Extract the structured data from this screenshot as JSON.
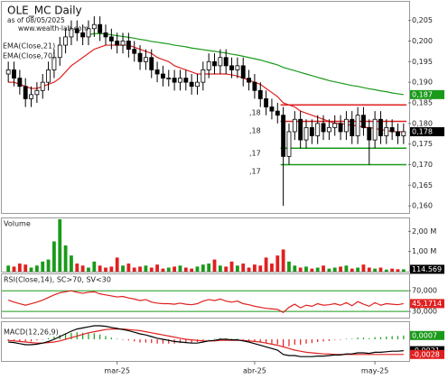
{
  "chart_data": [
    {
      "type": "candlestick",
      "title": "OLE_MC Daily",
      "subtitle": "as of 08/05/2025",
      "source": "www.wealth-lab.com",
      "categories": [
        null,
        null,
        null,
        null,
        null,
        null,
        null,
        null,
        null,
        null,
        null,
        null,
        null,
        null,
        null,
        null,
        null,
        null,
        null,
        "mar-25",
        null,
        null,
        null,
        null,
        null,
        null,
        null,
        null,
        null,
        null,
        null,
        null,
        null,
        null,
        null,
        null,
        null,
        null,
        null,
        null,
        null,
        null,
        null,
        "abr-25",
        null,
        null,
        null,
        null,
        null,
        null,
        null,
        null,
        null,
        null,
        null,
        null,
        null,
        null,
        null,
        null,
        null,
        null,
        null,
        null,
        "may-25",
        null,
        null,
        null,
        null,
        null
      ],
      "open": [
        0.192,
        0.193,
        0.191,
        0.189,
        0.186,
        0.187,
        0.188,
        0.19,
        0.193,
        0.196,
        0.199,
        0.201,
        0.203,
        0.202,
        0.201,
        0.203,
        0.204,
        0.202,
        0.201,
        0.2,
        0.199,
        0.2,
        0.198,
        0.197,
        0.195,
        0.196,
        0.193,
        0.192,
        0.191,
        0.191,
        0.19,
        0.191,
        0.19,
        0.189,
        0.19,
        0.193,
        0.195,
        0.194,
        0.196,
        0.194,
        0.193,
        0.194,
        0.191,
        0.19,
        0.188,
        0.186,
        0.184,
        0.183,
        0.182,
        0.172,
        0.178,
        0.181,
        0.176,
        0.179,
        0.177,
        0.18,
        0.178,
        0.179,
        0.18,
        0.178,
        0.181,
        0.177,
        0.182,
        0.179,
        0.176,
        0.181,
        0.177,
        0.179,
        0.178,
        0.177
      ],
      "high": [
        0.195,
        0.195,
        0.193,
        0.191,
        0.189,
        0.19,
        0.192,
        0.195,
        0.198,
        0.201,
        0.203,
        0.205,
        0.205,
        0.204,
        0.205,
        0.206,
        0.206,
        0.204,
        0.203,
        0.202,
        0.202,
        0.202,
        0.2,
        0.199,
        0.198,
        0.198,
        0.195,
        0.194,
        0.193,
        0.193,
        0.193,
        0.193,
        0.192,
        0.192,
        0.195,
        0.197,
        0.197,
        0.198,
        0.198,
        0.196,
        0.196,
        0.196,
        0.193,
        0.192,
        0.19,
        0.188,
        0.186,
        0.185,
        0.184,
        0.18,
        0.183,
        0.183,
        0.181,
        0.181,
        0.182,
        0.182,
        0.181,
        0.182,
        0.182,
        0.183,
        0.183,
        0.184,
        0.184,
        0.181,
        0.183,
        0.183,
        0.181,
        0.181,
        0.18,
        0.18
      ],
      "low": [
        0.19,
        0.189,
        0.187,
        0.184,
        0.184,
        0.185,
        0.186,
        0.188,
        0.191,
        0.194,
        0.197,
        0.199,
        0.2,
        0.199,
        0.199,
        0.201,
        0.2,
        0.199,
        0.198,
        0.197,
        0.197,
        0.196,
        0.195,
        0.193,
        0.193,
        0.191,
        0.19,
        0.189,
        0.189,
        0.188,
        0.188,
        0.188,
        0.187,
        0.187,
        0.188,
        0.191,
        0.192,
        0.192,
        0.192,
        0.191,
        0.191,
        0.189,
        0.188,
        0.186,
        0.184,
        0.182,
        0.181,
        0.18,
        0.16,
        0.17,
        0.176,
        0.174,
        0.174,
        0.175,
        0.175,
        0.176,
        0.176,
        0.177,
        0.176,
        0.176,
        0.175,
        0.175,
        0.177,
        0.17,
        0.174,
        0.175,
        0.175,
        0.176,
        0.175,
        0.175
      ],
      "close": [
        0.193,
        0.191,
        0.189,
        0.186,
        0.187,
        0.188,
        0.19,
        0.193,
        0.196,
        0.199,
        0.201,
        0.203,
        0.202,
        0.201,
        0.203,
        0.204,
        0.202,
        0.201,
        0.2,
        0.199,
        0.2,
        0.198,
        0.197,
        0.195,
        0.196,
        0.193,
        0.192,
        0.191,
        0.191,
        0.19,
        0.191,
        0.19,
        0.189,
        0.19,
        0.193,
        0.195,
        0.194,
        0.196,
        0.194,
        0.193,
        0.194,
        0.191,
        0.19,
        0.188,
        0.186,
        0.184,
        0.183,
        0.182,
        0.172,
        0.178,
        0.181,
        0.176,
        0.179,
        0.177,
        0.18,
        0.178,
        0.179,
        0.18,
        0.178,
        0.181,
        0.177,
        0.182,
        0.179,
        0.176,
        0.181,
        0.177,
        0.179,
        0.178,
        0.177,
        0.178
      ],
      "up_color": "#ffffff",
      "down_color": "#000000",
      "last_label": {
        "value": 0.178,
        "label": "0,178"
      },
      "series": [
        {
          "name": "EMA(Close,21)",
          "color": "#e02020",
          "values": [
            0.19,
            0.19,
            0.1895,
            0.189,
            0.1885,
            0.1885,
            0.189,
            0.1895,
            0.19,
            0.191,
            0.1925,
            0.194,
            0.195,
            0.196,
            0.197,
            0.198,
            0.1985,
            0.199,
            0.199,
            0.199,
            0.199,
            0.199,
            0.1985,
            0.198,
            0.1975,
            0.197,
            0.196,
            0.1955,
            0.195,
            0.194,
            0.1935,
            0.193,
            0.1925,
            0.192,
            0.192,
            0.192,
            0.192,
            0.192,
            0.192,
            0.1918,
            0.1915,
            0.191,
            0.1905,
            0.19,
            0.1895,
            0.1885,
            0.1875,
            0.1865,
            0.185,
            0.1845,
            0.184,
            0.183,
            0.1825,
            0.182,
            0.1815,
            0.181,
            0.1805,
            0.18,
            0.18,
            0.1798,
            0.1795,
            0.1795,
            0.179,
            0.179,
            0.1788,
            0.1785,
            0.1783,
            0.178,
            0.178,
            0.178
          ]
        },
        {
          "name": "EMA(Close,70)",
          "color": "#1a9a1a",
          "last_label": {
            "value": 0.187,
            "label": "0,187"
          },
          "values": [
            null,
            null,
            null,
            null,
            null,
            null,
            null,
            null,
            null,
            null,
            null,
            null,
            null,
            null,
            0.2015,
            0.2018,
            0.2018,
            0.2017,
            0.2015,
            0.2013,
            0.2011,
            0.2009,
            0.2007,
            0.2004,
            0.2002,
            0.1999,
            0.1997,
            0.1995,
            0.1993,
            0.199,
            0.1988,
            0.1986,
            0.1983,
            0.1981,
            0.1979,
            0.1977,
            0.1975,
            0.1973,
            0.1971,
            0.1968,
            0.1966,
            0.1963,
            0.196,
            0.1957,
            0.1954,
            0.195,
            0.1946,
            0.1942,
            0.1936,
            0.1932,
            0.1928,
            0.1924,
            0.192,
            0.1916,
            0.1912,
            0.1908,
            0.1904,
            0.1901,
            0.1898,
            0.1895,
            0.1892,
            0.189,
            0.1887,
            0.1884,
            0.1882,
            0.1879,
            0.1877,
            0.1874,
            0.1872,
            0.187
          ]
        }
      ],
      "levels": [
        {
          "value": 0.1845,
          "color": "#e02020"
        },
        {
          "value": 0.1805,
          "color": "#e02020"
        },
        {
          "value": 0.174,
          "color": "#1a9a1a"
        },
        {
          "value": 0.17,
          "color": "#1a9a1a"
        }
      ],
      "annotations": [
        ",18",
        ",18",
        ",17",
        ",17"
      ],
      "ylim": [
        0.1585,
        0.2093
      ],
      "yticks": [
        {
          "value": 0.16,
          "label": "0,160"
        },
        {
          "value": 0.165,
          "label": "0,165"
        },
        {
          "value": 0.17,
          "label": "0,170"
        },
        {
          "value": 0.175,
          "label": "0,175"
        },
        {
          "value": 0.18,
          "label": "0,180"
        },
        {
          "value": 0.185,
          "label": "0,185"
        },
        {
          "value": 0.19,
          "label": "0,190"
        },
        {
          "value": 0.195,
          "label": "0,195"
        },
        {
          "value": 0.2,
          "label": "0,200"
        },
        {
          "value": 0.205,
          "label": "0,205"
        }
      ]
    },
    {
      "type": "bar",
      "title": "Volume",
      "values": [
        300000,
        250000,
        400000,
        350000,
        200000,
        300000,
        500000,
        600000,
        1500000,
        2600000,
        1300000,
        800000,
        400000,
        300000,
        200000,
        500000,
        300000,
        200000,
        250000,
        700000,
        300000,
        400000,
        200000,
        250000,
        300000,
        200000,
        350000,
        150000,
        200000,
        250000,
        300000,
        200000,
        150000,
        250000,
        350000,
        400000,
        600000,
        300000,
        250000,
        500000,
        300000,
        400000,
        200000,
        350000,
        300000,
        700000,
        400000,
        800000,
        1100000,
        500000,
        300000,
        200000,
        250000,
        150000,
        200000,
        300000,
        150000,
        200000,
        250000,
        300000,
        150000,
        200000,
        350000,
        200000,
        150000,
        200000,
        100000,
        150000,
        120000,
        114569
      ],
      "up_color": "#1a9a1a",
      "down_color": "#e02020",
      "last_label": {
        "value": 114569,
        "label": "114.569"
      },
      "ylim": [
        0,
        2600000
      ],
      "yticks": [
        {
          "value": 1000000,
          "label": "1,00 M"
        },
        {
          "value": 2000000,
          "label": "2,00 M"
        }
      ]
    },
    {
      "type": "line",
      "title": "RSI(Close,14), SC>70, SV<30",
      "color": "#e02020",
      "band_color": "#1a9a1a",
      "values": [
        52,
        48,
        45,
        42,
        45,
        48,
        52,
        57,
        62,
        66,
        68,
        70,
        67,
        65,
        67,
        68,
        64,
        62,
        60,
        58,
        59,
        56,
        54,
        51,
        53,
        48,
        46,
        45,
        45,
        44,
        46,
        44,
        43,
        45,
        50,
        53,
        51,
        54,
        50,
        48,
        50,
        45,
        43,
        40,
        38,
        36,
        35,
        34,
        28,
        38,
        44,
        37,
        42,
        40,
        45,
        42,
        43,
        45,
        42,
        47,
        41,
        49,
        44,
        40,
        47,
        42,
        45,
        44,
        43,
        45.1714
      ],
      "last_label": {
        "value": 45.1714,
        "label": "45,1714"
      },
      "ylim": [
        18,
        100
      ],
      "yticks": [
        {
          "value": 70,
          "label": "70,000"
        },
        {
          "value": 30,
          "label": "30,000"
        }
      ]
    },
    {
      "type": "macd",
      "title": "MACD(12,26,9)",
      "macd_color": "#000000",
      "signal_color": "#e02020",
      "up_color": "#1a9a1a",
      "down_color": "#e02020",
      "macd": [
        -0.0005,
        -0.0006,
        -0.0008,
        -0.001,
        -0.001,
        -0.0009,
        -0.0007,
        -0.0004,
        0.0,
        0.0005,
        0.001,
        0.0015,
        0.0019,
        0.0021,
        0.0023,
        0.0025,
        0.0025,
        0.0024,
        0.0022,
        0.002,
        0.0018,
        0.0016,
        0.0013,
        0.001,
        0.0008,
        0.0005,
        0.0002,
        0.0,
        -0.0002,
        -0.0004,
        -0.0005,
        -0.0006,
        -0.0007,
        -0.0007,
        -0.0005,
        -0.0003,
        -0.0002,
        0.0,
        0.0,
        -0.0001,
        -0.0001,
        -0.0003,
        -0.0005,
        -0.0008,
        -0.0011,
        -0.0014,
        -0.0017,
        -0.002,
        -0.0028,
        -0.003,
        -0.003,
        -0.0032,
        -0.0032,
        -0.0032,
        -0.0031,
        -0.0031,
        -0.003,
        -0.0029,
        -0.0029,
        -0.0027,
        -0.0027,
        -0.0025,
        -0.0025,
        -0.0026,
        -0.0024,
        -0.0024,
        -0.0023,
        -0.0022,
        -0.0022,
        -0.0021
      ],
      "signal": [
        -0.0002,
        -0.0003,
        -0.0004,
        -0.0005,
        -0.0006,
        -0.0007,
        -0.0007,
        -0.0006,
        -0.0005,
        -0.0003,
        0.0,
        0.0003,
        0.0006,
        0.0009,
        0.0012,
        0.0014,
        0.0016,
        0.0018,
        0.0019,
        0.0019,
        0.0019,
        0.0018,
        0.0017,
        0.0016,
        0.0014,
        0.0012,
        0.001,
        0.0008,
        0.0006,
        0.0004,
        0.0002,
        0.0,
        -0.0001,
        -0.0002,
        -0.0003,
        -0.0003,
        -0.0003,
        -0.0002,
        -0.0002,
        -0.0002,
        -0.0002,
        -0.0002,
        -0.0003,
        -0.0004,
        -0.0005,
        -0.0007,
        -0.0009,
        -0.0011,
        -0.0014,
        -0.0017,
        -0.002,
        -0.0022,
        -0.0024,
        -0.0025,
        -0.0026,
        -0.0027,
        -0.0027,
        -0.0028,
        -0.0028,
        -0.0028,
        -0.0028,
        -0.0028,
        -0.0028,
        -0.0028,
        -0.0028,
        -0.0028,
        -0.0028,
        -0.0028,
        -0.0028,
        -0.0028
      ],
      "histogram": [
        -0.0003,
        -0.0003,
        -0.0004,
        -0.0005,
        -0.0004,
        -0.0002,
        0.0,
        0.0002,
        0.0005,
        0.0008,
        0.001,
        0.0012,
        0.0013,
        0.0012,
        0.0011,
        0.0011,
        0.0009,
        0.0006,
        0.0003,
        0.0001,
        -0.0001,
        -0.0002,
        -0.0004,
        -0.0006,
        -0.0006,
        -0.0007,
        -0.0008,
        -0.0008,
        -0.0008,
        -0.0008,
        -0.0007,
        -0.0006,
        -0.0006,
        -0.0005,
        -0.0002,
        0.0,
        0.0001,
        0.0002,
        0.0002,
        0.0001,
        0.0001,
        -0.0001,
        -0.0002,
        -0.0004,
        -0.0006,
        -0.0007,
        -0.0008,
        -0.0009,
        -0.0014,
        -0.0013,
        -0.001,
        -0.001,
        -0.0008,
        -0.0007,
        -0.0005,
        -0.0004,
        -0.0003,
        -0.0001,
        -0.0001,
        0.0001,
        0.0001,
        0.0003,
        0.0003,
        0.0002,
        0.0004,
        0.0004,
        0.0005,
        0.0006,
        0.0006,
        0.0007
      ],
      "last_labels": [
        {
          "value": 0.0007,
          "label": "0,0007",
          "color": "#1a9a1a"
        },
        {
          "value": -0.0021,
          "label": "-0,0021",
          "color": "#000000"
        },
        {
          "value": -0.0028,
          "label": "-0,0028",
          "color": "#e02020"
        }
      ],
      "ylim": [
        -0.004,
        0.003
      ]
    }
  ]
}
